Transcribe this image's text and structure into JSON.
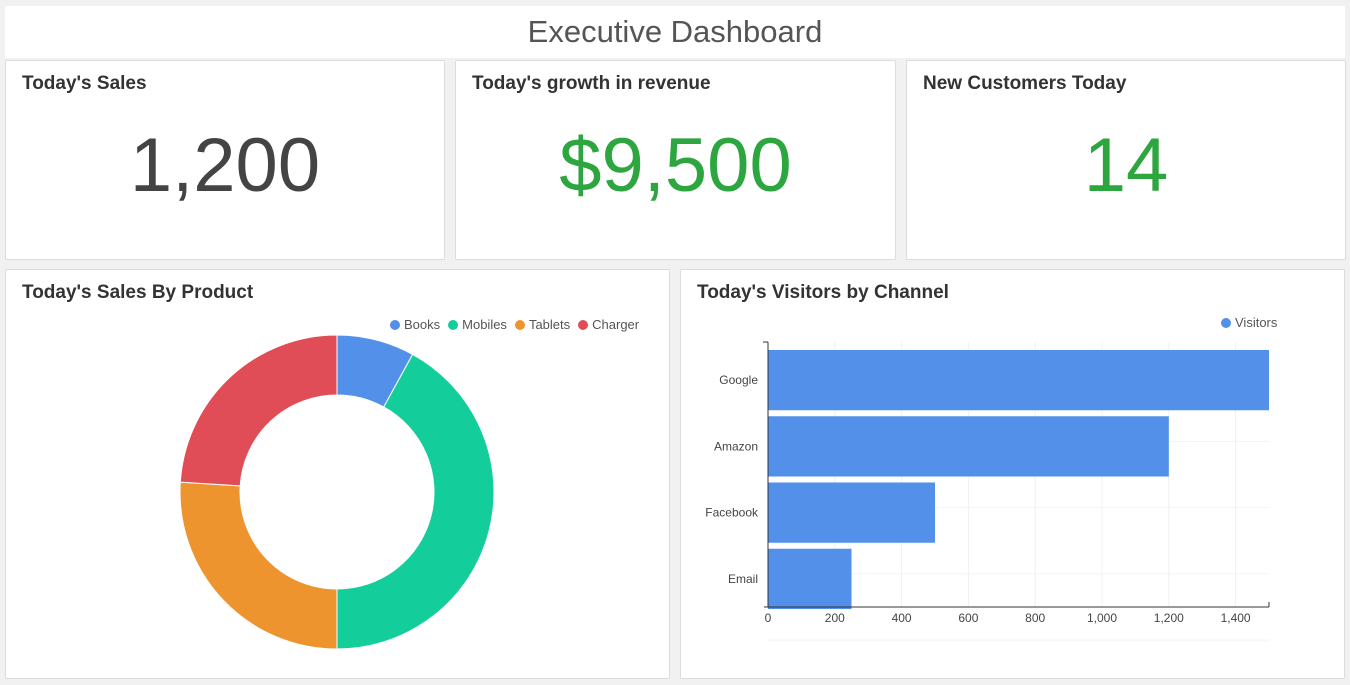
{
  "header": {
    "title": "Executive Dashboard"
  },
  "kpis": [
    {
      "title": "Today's Sales",
      "value": "1,200",
      "color": "#444444"
    },
    {
      "title": "Today's growth in revenue",
      "value": "$9,500",
      "color": "#2ea640"
    },
    {
      "title": "New Customers Today",
      "value": "14",
      "color": "#2ea640"
    }
  ],
  "chart_data": [
    {
      "type": "pie",
      "title": "Today's Sales By Product",
      "legend_position": "top-right",
      "labels": [
        "Books",
        "Mobiles",
        "Tablets",
        "Charger"
      ],
      "values": [
        8,
        42,
        26,
        24
      ],
      "colors": [
        "#5290e9",
        "#13ce9a",
        "#ed942f",
        "#e14d57"
      ]
    },
    {
      "type": "bar",
      "orientation": "horizontal",
      "title": "Today's Visitors by Channel",
      "legend_position": "top-right",
      "categories": [
        "Google",
        "Amazon",
        "Facebook",
        "Email"
      ],
      "series": [
        {
          "name": "Visitors",
          "values": [
            1500,
            1200,
            500,
            250
          ],
          "color": "#5290e9"
        }
      ],
      "xlim": [
        0,
        1500
      ],
      "xticks": [
        0,
        200,
        400,
        600,
        800,
        1000,
        1200,
        1400
      ],
      "xtick_labels": [
        "0",
        "200",
        "400",
        "600",
        "800",
        "1,000",
        "1,200",
        "1,400"
      ],
      "grid": true
    }
  ]
}
